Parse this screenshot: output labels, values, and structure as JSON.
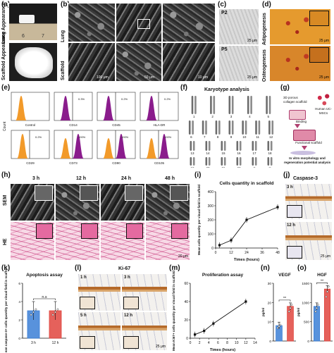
{
  "panel_labels": {
    "a": "(a)",
    "b": "(b)",
    "c": "(c)",
    "d": "(d)",
    "e": "(e)",
    "f": "(f)",
    "g": "(g)",
    "h": "(h)",
    "i": "(i)",
    "j": "(j)",
    "k": "(k)",
    "l": "(l)",
    "m": "(m)",
    "n": "(n)",
    "o": "(o)"
  },
  "a": {
    "top_label": "Lung Appearance",
    "bottom_label": "Scaffold Appearance",
    "ruler_ticks": [
      "6",
      "7"
    ]
  },
  "b": {
    "row1": "Lung",
    "row2": "Scaffold",
    "scale": [
      "100 μm",
      "50 μm",
      "10 μm"
    ]
  },
  "c": {
    "p2": "P2",
    "p5": "P5",
    "scale": "25 μm"
  },
  "d": {
    "row1": "Adipogenesis",
    "row2": "Osteogenesis",
    "scale": "25 μm"
  },
  "e": {
    "count_label": "Count",
    "markers": [
      "Control",
      "CD14",
      "CD45",
      "HLA-DR",
      "CD29",
      "CD73",
      "CD90",
      "CD105"
    ],
    "percents": [
      "",
      "0.3%",
      "0.2%",
      "0.2%",
      "0.2%",
      "100%",
      "100%",
      "100%"
    ]
  },
  "f": {
    "title": "Karyotype analysis",
    "chromosomes": [
      "1",
      "2",
      "3",
      "4",
      "5",
      "6",
      "7",
      "8",
      "9",
      "10",
      "11",
      "12",
      "13",
      "14",
      "15",
      "16",
      "17",
      "18",
      "19",
      "20",
      "21",
      "22",
      "X",
      "Y"
    ]
  },
  "g": {
    "scaffold": "3D porous collagen scaffold",
    "cells": "Human UC-MSCs",
    "binding": "Binding",
    "functional": "Functional scaffold",
    "analysis": "In vitro morphology and regeneration potential analysis"
  },
  "h": {
    "times": [
      "3 h",
      "12 h",
      "24 h",
      "48 h"
    ],
    "row1": "SEM",
    "row2": "HE",
    "scale": "20 μm"
  },
  "i": {
    "title": "Cells quantity in scaffold",
    "scale_label": ""
  },
  "j": {
    "title": "Caspase-3",
    "t1": "3 h",
    "t2": "12 h",
    "scale": "25 μm"
  },
  "k": {
    "title": "Apoptosis assay",
    "ns": "n.s"
  },
  "l": {
    "title": "Ki-67",
    "times": [
      "1 h",
      "3 h",
      "5 h",
      "12 h"
    ],
    "scale": "25 μm"
  },
  "m": {
    "title": "Proliferation assay"
  },
  "n": {
    "title": "VEGF",
    "sig": "**"
  },
  "o": {
    "title": "HGF",
    "sig": "**"
  },
  "chart_data": [
    {
      "id": "i",
      "type": "line",
      "title": "Cells quantity in scaffold",
      "xlabel": "Times (hours)",
      "ylabel": "Mean cells quantity per visual field in scaffold",
      "x": [
        3,
        12,
        24,
        48
      ],
      "values": [
        20,
        55,
        200,
        290
      ],
      "xticks": [
        "0",
        "12",
        "24",
        "36",
        "48"
      ],
      "yticks": [
        "0",
        "100",
        "200",
        "300",
        "400"
      ],
      "xlim": [
        0,
        48
      ],
      "ylim": [
        0,
        400
      ]
    },
    {
      "id": "k",
      "type": "bar",
      "title": "Apoptosis assay",
      "ylabel": "Mean caspase-3+ cells quantity per visual field in scaffold",
      "categories": [
        "3 h",
        "12 h"
      ],
      "values": [
        3.0,
        3.0
      ],
      "errors": [
        1.0,
        1.0
      ],
      "yticks": [
        "0",
        "2",
        "4",
        "6"
      ],
      "ylim": [
        0,
        6
      ],
      "colors": [
        "#3b7fd6",
        "#e0453e"
      ]
    },
    {
      "id": "m",
      "type": "line",
      "title": "Proliferation assay",
      "xlabel": "Times (hours)",
      "ylabel": "Mean Ki67+ cells quantity per visual field in scaffold",
      "x": [
        1,
        3,
        5,
        12
      ],
      "values": [
        4,
        8,
        16,
        40
      ],
      "xticks": [
        "0",
        "2",
        "4",
        "6",
        "8",
        "10",
        "12",
        "14"
      ],
      "yticks": [
        "0",
        "20",
        "40",
        "60"
      ],
      "xlim": [
        0,
        14
      ],
      "ylim": [
        0,
        60
      ]
    },
    {
      "id": "n",
      "type": "bar",
      "title": "VEGF",
      "ylabel": "pg/ml",
      "categories": [
        "",
        ""
      ],
      "values": [
        8,
        18
      ],
      "yticks": [
        "0",
        "10",
        "20",
        "30"
      ],
      "ylim": [
        0,
        30
      ],
      "colors": [
        "#3b7fd6",
        "#e0453e"
      ]
    },
    {
      "id": "o",
      "type": "bar",
      "title": "HGF",
      "ylabel": "pg/ml",
      "categories": [
        "",
        ""
      ],
      "values": [
        900,
        1350
      ],
      "yticks": [
        "0",
        "500",
        "1000",
        "1500"
      ],
      "ylim": [
        0,
        1500
      ],
      "colors": [
        "#3b7fd6",
        "#e0453e"
      ]
    }
  ]
}
